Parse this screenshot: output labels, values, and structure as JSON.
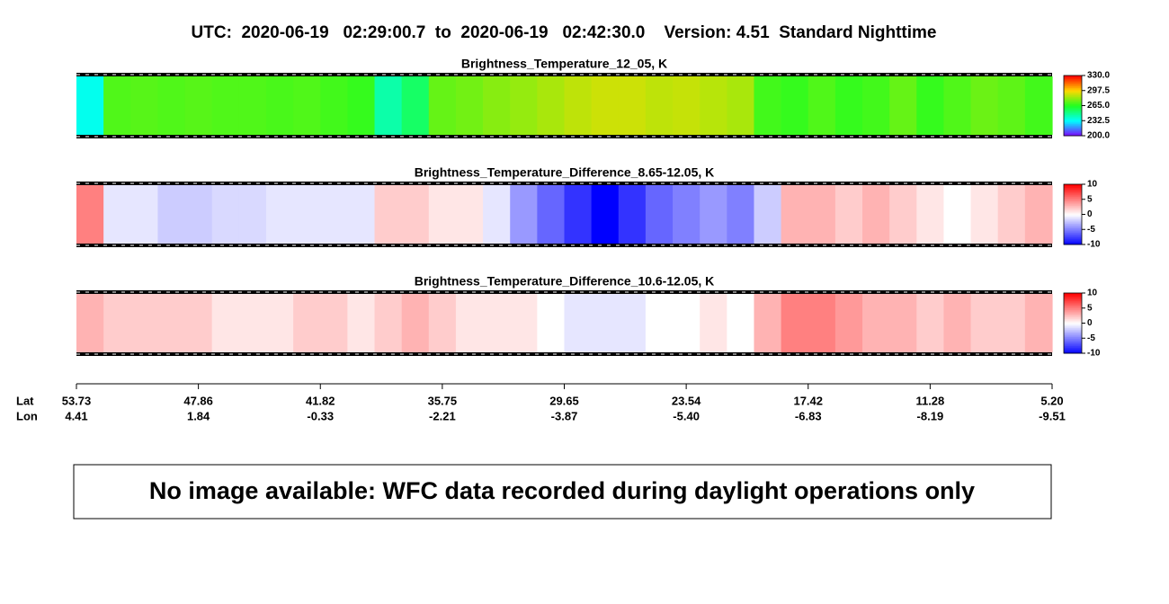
{
  "title": "UTC:  2020-06-19   02:29:00.7  to  2020-06-19   02:42:30.0    Version: 4.51  Standard Nighttime",
  "chart_data": [
    {
      "type": "heatmap",
      "title": "Brightness_Temperature_12_05, K",
      "values": [
        235,
        272,
        273,
        272,
        273,
        272,
        272,
        271,
        272,
        270,
        268,
        245,
        255,
        275,
        277,
        280,
        282,
        285,
        288,
        290,
        290,
        288,
        289,
        287,
        285,
        270,
        268,
        272,
        268,
        270,
        275,
        268,
        272,
        276,
        274,
        270
      ],
      "clim": [
        200,
        330
      ],
      "cticks": [
        {
          "value": 330,
          "label": "330.0"
        },
        {
          "value": 297.5,
          "label": "297.5"
        },
        {
          "value": 265,
          "label": "265.0"
        },
        {
          "value": 232.5,
          "label": "232.5"
        },
        {
          "value": 200,
          "label": "200.0"
        }
      ],
      "colors": [
        "#ff0000",
        "#ffd800",
        "#20ff20",
        "#00ffff",
        "#8000ff"
      ]
    },
    {
      "type": "heatmap",
      "title": "Brightness_Temperature_Difference_8.65-12.05, K",
      "values": [
        5,
        -1,
        -1,
        -2,
        -2,
        -1.5,
        -1.5,
        -1,
        -1,
        -1,
        -1,
        2,
        2,
        1,
        1,
        -1,
        -4,
        -6,
        -8,
        -10,
        -8,
        -6,
        -5,
        -4,
        -5,
        -2,
        3,
        3,
        2,
        3,
        2,
        1,
        0,
        1,
        2,
        3
      ],
      "clim": [
        -10,
        10
      ],
      "cticks": [
        10,
        5,
        0,
        -5,
        -10
      ],
      "colors": [
        "#ff0000",
        "#ff8080",
        "#ffffff",
        "#8080ff",
        "#0000ff"
      ]
    },
    {
      "type": "heatmap",
      "title": "Brightness_Temperature_Difference_10.6-12.05, K",
      "values": [
        3,
        2,
        2,
        2,
        2,
        1,
        1,
        1,
        2,
        2,
        1,
        2,
        3,
        2,
        1,
        1,
        1,
        0,
        -1,
        -1,
        -1,
        0,
        0,
        1,
        0,
        3,
        5,
        5,
        4,
        3,
        3,
        2,
        3,
        2,
        2,
        3
      ],
      "clim": [
        -10,
        10
      ],
      "cticks": [
        10,
        5,
        0,
        -5,
        -10
      ],
      "colors": [
        "#ff0000",
        "#ff8080",
        "#ffffff",
        "#8080ff",
        "#0000ff"
      ]
    }
  ],
  "x_axis": {
    "row_labels": [
      "Lat",
      "Lon"
    ],
    "lat": [
      53.73,
      47.86,
      41.82,
      35.75,
      29.65,
      23.54,
      17.42,
      11.28,
      {
        "value": 5.2,
        "label": "5.20"
      }
    ],
    "lon": [
      4.41,
      1.84,
      -0.33,
      -2.21,
      -3.87,
      {
        "value": -5.4,
        "label": "-5.40"
      },
      -6.83,
      -8.19,
      -9.51
    ]
  },
  "message": "No image available: WFC data recorded during daylight operations only"
}
